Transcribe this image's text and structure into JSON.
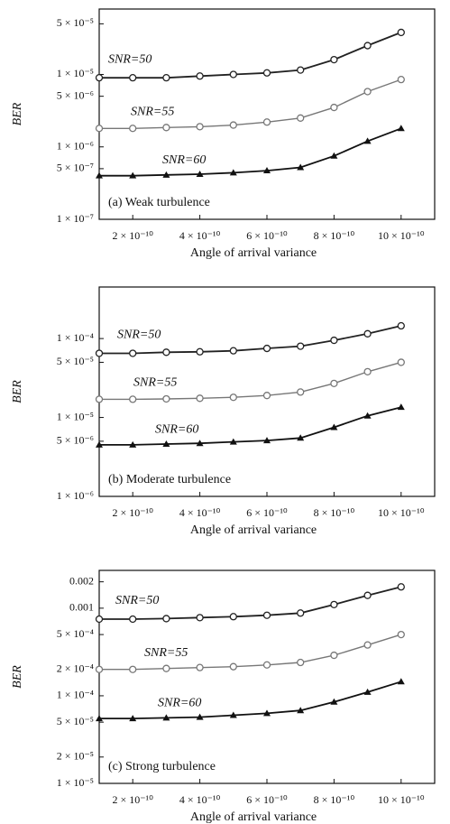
{
  "chart_data": [
    {
      "type": "line",
      "title": "(a) Weak turbulence",
      "xlabel": "Angle of arrival variance",
      "ylabel": "BER",
      "log_y": true,
      "x": [
        1e-10,
        2e-10,
        3e-10,
        4e-10,
        5e-10,
        6e-10,
        7e-10,
        8e-10,
        9e-10,
        1e-09
      ],
      "xlim": [
        1e-10,
        1.1e-09
      ],
      "xticks": [
        {
          "value": 2e-10,
          "label": "2 × 10⁻¹⁰"
        },
        {
          "value": 4e-10,
          "label": "4 × 10⁻¹⁰"
        },
        {
          "value": 6e-10,
          "label": "6 × 10⁻¹⁰"
        },
        {
          "value": 8e-10,
          "label": "8 × 10⁻¹⁰"
        },
        {
          "value": 1e-09,
          "label": "10 × 10⁻¹⁰"
        }
      ],
      "ylim": [
        1e-07,
        8e-05
      ],
      "yticks": [
        {
          "value": 1e-07,
          "label": "1 × 10⁻⁷"
        },
        {
          "value": 5e-07,
          "label": "5 × 10⁻⁷"
        },
        {
          "value": 1e-06,
          "label": "1 × 10⁻⁶"
        },
        {
          "value": 5e-06,
          "label": "5 × 10⁻⁶"
        },
        {
          "value": 1e-05,
          "label": "1 × 10⁻⁵"
        },
        {
          "value": 5e-05,
          "label": "5 × 10⁻⁵"
        }
      ],
      "series": [
        {
          "name": "SNR=50",
          "color": "#222222",
          "values": [
            9e-06,
            9e-06,
            9e-06,
            9.5e-06,
            1e-05,
            1.05e-05,
            1.15e-05,
            1.6e-05,
            2.5e-05,
            3.8e-05
          ]
        },
        {
          "name": "SNR=55",
          "color": "#777777",
          "values": [
            1.8e-06,
            1.8e-06,
            1.85e-06,
            1.9e-06,
            2e-06,
            2.2e-06,
            2.5e-06,
            3.5e-06,
            5.8e-06,
            8.5e-06
          ]
        },
        {
          "name": "SNR=60",
          "color": "#111111",
          "values": [
            4e-07,
            4e-07,
            4.1e-07,
            4.2e-07,
            4.4e-07,
            4.7e-07,
            5.2e-07,
            7.5e-07,
            1.2e-06,
            1.8e-06
          ]
        }
      ]
    },
    {
      "type": "line",
      "title": "(b) Moderate turbulence",
      "xlabel": "Angle of arrival variance",
      "ylabel": "BER",
      "log_y": true,
      "x": [
        1e-10,
        2e-10,
        3e-10,
        4e-10,
        5e-10,
        6e-10,
        7e-10,
        8e-10,
        9e-10,
        1e-09
      ],
      "xlim": [
        1e-10,
        1.1e-09
      ],
      "xticks": [
        {
          "value": 2e-10,
          "label": "2 × 10⁻¹⁰"
        },
        {
          "value": 4e-10,
          "label": "4 × 10⁻¹⁰"
        },
        {
          "value": 6e-10,
          "label": "6 × 10⁻¹⁰"
        },
        {
          "value": 8e-10,
          "label": "8 × 10⁻¹⁰"
        },
        {
          "value": 1e-09,
          "label": "10 × 10⁻¹⁰"
        }
      ],
      "ylim": [
        1e-06,
        0.00045
      ],
      "yticks": [
        {
          "value": 1e-06,
          "label": "1 × 10⁻⁶"
        },
        {
          "value": 5e-06,
          "label": "5 × 10⁻⁶"
        },
        {
          "value": 1e-05,
          "label": "1 × 10⁻⁵"
        },
        {
          "value": 5e-05,
          "label": "5 × 10⁻⁵"
        },
        {
          "value": 0.0001,
          "label": "1 × 10⁻⁴"
        }
      ],
      "series": [
        {
          "name": "SNR=50",
          "color": "#222222",
          "values": [
            6.5e-05,
            6.5e-05,
            6.7e-05,
            6.8e-05,
            7e-05,
            7.5e-05,
            8e-05,
            9.5e-05,
            0.000115,
            0.000145
          ]
        },
        {
          "name": "SNR=55",
          "color": "#777777",
          "values": [
            1.7e-05,
            1.7e-05,
            1.72e-05,
            1.75e-05,
            1.8e-05,
            1.9e-05,
            2.1e-05,
            2.7e-05,
            3.8e-05,
            5e-05
          ]
        },
        {
          "name": "SNR=60",
          "color": "#111111",
          "values": [
            4.5e-06,
            4.5e-06,
            4.6e-06,
            4.7e-06,
            4.9e-06,
            5.1e-06,
            5.5e-06,
            7.5e-06,
            1.05e-05,
            1.35e-05
          ]
        }
      ]
    },
    {
      "type": "line",
      "title": "(c) Strong turbulence",
      "xlabel": "Angle of arrival variance",
      "ylabel": "BER",
      "log_y": true,
      "x": [
        1e-10,
        2e-10,
        3e-10,
        4e-10,
        5e-10,
        6e-10,
        7e-10,
        8e-10,
        9e-10,
        1e-09
      ],
      "xlim": [
        1e-10,
        1.1e-09
      ],
      "xticks": [
        {
          "value": 2e-10,
          "label": "2 × 10⁻¹⁰"
        },
        {
          "value": 4e-10,
          "label": "4 × 10⁻¹⁰"
        },
        {
          "value": 6e-10,
          "label": "6 × 10⁻¹⁰"
        },
        {
          "value": 8e-10,
          "label": "8 × 10⁻¹⁰"
        },
        {
          "value": 1e-09,
          "label": "10 × 10⁻¹⁰"
        }
      ],
      "ylim": [
        1e-05,
        0.0027
      ],
      "yticks": [
        {
          "value": 1e-05,
          "label": "1 × 10⁻⁵"
        },
        {
          "value": 2e-05,
          "label": "2 × 10⁻⁵"
        },
        {
          "value": 5e-05,
          "label": "5 × 10⁻⁵"
        },
        {
          "value": 0.0001,
          "label": "1 × 10⁻⁴"
        },
        {
          "value": 0.0002,
          "label": "2 × 10⁻⁴"
        },
        {
          "value": 0.0005,
          "label": "5 × 10⁻⁴"
        },
        0.001,
        0.002
      ],
      "series": [
        {
          "name": "SNR=50",
          "color": "#222222",
          "values": [
            0.00075,
            0.00075,
            0.00076,
            0.00078,
            0.0008,
            0.00083,
            0.00088,
            0.0011,
            0.0014,
            0.00175
          ]
        },
        {
          "name": "SNR=55",
          "color": "#777777",
          "values": [
            0.0002,
            0.0002,
            0.000205,
            0.00021,
            0.000215,
            0.000225,
            0.00024,
            0.00029,
            0.00038,
            0.0005
          ]
        },
        {
          "name": "SNR=60",
          "color": "#111111",
          "values": [
            5.5e-05,
            5.5e-05,
            5.6e-05,
            5.7e-05,
            6e-05,
            6.3e-05,
            6.8e-05,
            8.5e-05,
            0.00011,
            0.000145
          ]
        }
      ]
    }
  ]
}
